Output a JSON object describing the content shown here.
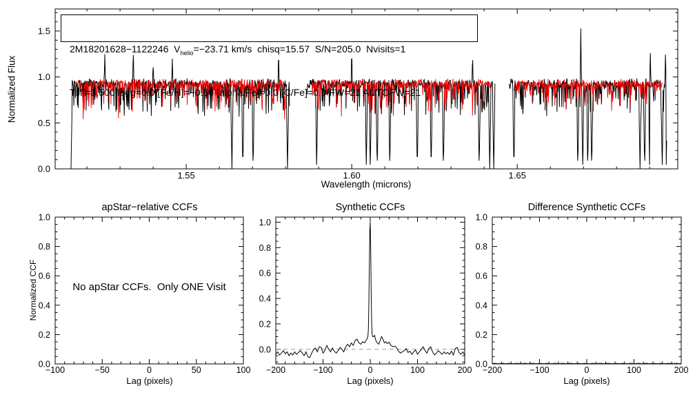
{
  "figure": {
    "background": "#ffffff",
    "axis_color": "#000000",
    "observed_color": "#000000",
    "synthetic_color": "#ee0000",
    "zero_line_color": "#999999"
  },
  "annotation_box": {
    "line1_pre": "2M18201628−1122246  V",
    "line1_sub": "helio",
    "line1_post": "=−23.71 km/s  chisq=15.57  S/N=205.0  Nvisits=1",
    "line2": "Teff=3,500 logg=0.0 [Fe/H]=−0.50 [alpha/Fe]=0.0 [C/Fe]=0.0 FW=21 AUTOFW=21"
  },
  "chart_data": [
    {
      "id": "spectrum",
      "type": "line",
      "xlabel": "Wavelength (microns)",
      "ylabel": "Normalized Flux",
      "xlim": [
        1.5104,
        1.6985
      ],
      "ylim": [
        0.0,
        1.74
      ],
      "xticks": [
        1.55,
        1.6,
        1.65
      ],
      "xtick_labels": [
        "1.55",
        "1.60",
        "1.65"
      ],
      "yticks": [
        0.0,
        0.5,
        1.0,
        1.5
      ],
      "ytick_labels": [
        "0.0",
        "0.5",
        "1.0",
        "1.5"
      ],
      "x_minor_step": 0.01,
      "y_minor_step": 0.1,
      "series": [
        {
          "name": "observed-spectrum",
          "color": "#000000"
        },
        {
          "name": "best-fit-synthetic-spectrum",
          "color": "#ee0000"
        }
      ],
      "detector_segments_microns": [
        [
          1.5152,
          1.5813
        ],
        [
          1.5865,
          1.6433
        ],
        [
          1.6475,
          1.6952
        ]
      ],
      "deep_absorption_lines_microns": [
        1.5152,
        1.5638,
        1.5671,
        1.5702,
        1.5806,
        1.5894,
        1.6044,
        1.6056,
        1.6077,
        1.6115,
        1.6198,
        1.624,
        1.6277,
        1.6385,
        1.6417,
        1.6429,
        1.649,
        1.6683,
        1.6698,
        1.6713,
        1.6725,
        1.6871,
        1.6885,
        1.69,
        1.6938,
        1.695
      ],
      "emission_spikes": [
        [
          1.5254,
          1.25
        ],
        [
          1.534,
          1.32
        ],
        [
          1.54,
          1.15
        ],
        [
          1.5458,
          1.2
        ],
        [
          1.5779,
          1.3
        ],
        [
          1.6,
          1.32
        ],
        [
          1.6365,
          1.25
        ],
        [
          1.6692,
          1.6
        ],
        [
          1.6902,
          1.3
        ],
        [
          1.6948,
          1.28
        ]
      ],
      "typical_flux_band": [
        0.75,
        1.0
      ],
      "noise_seed": 20240501
    },
    {
      "id": "apstar_ccf",
      "type": "line",
      "title": "apStar−relative CCFs",
      "xlabel": "Lag (pixels)",
      "ylabel": "Normalized CCF",
      "xlim": [
        -100,
        100
      ],
      "ylim": [
        0,
        1
      ],
      "xticks": [
        -100,
        -50,
        0,
        50,
        100
      ],
      "xtick_labels": [
        "−100",
        "−50",
        "0",
        "50",
        "100"
      ],
      "yticks": [
        0,
        0.2,
        0.4,
        0.6,
        0.8,
        1.0
      ],
      "ytick_labels": [
        "0.0",
        "0.2",
        "0.4",
        "0.6",
        "0.8",
        "1.0"
      ],
      "x_minor_step": 10,
      "y_minor_step": 0.05,
      "annotation": "No apStar CCFs.  Only ONE Visit",
      "points": []
    },
    {
      "id": "synthetic_ccf",
      "type": "line",
      "title": "Synthetic CCFs",
      "xlabel": "Lag (pixels)",
      "ylabel": "",
      "xlim": [
        -200,
        200
      ],
      "ylim": [
        -0.115,
        1.04
      ],
      "xticks": [
        -200,
        -100,
        0,
        100,
        200
      ],
      "xtick_labels": [
        "−200",
        "−100",
        "0",
        "100",
        "200"
      ],
      "yticks": [
        0,
        0.2,
        0.4,
        0.6,
        0.8,
        1.0
      ],
      "ytick_labels": [
        "0.0",
        "0.2",
        "0.4",
        "0.6",
        "0.8",
        "1.0"
      ],
      "x_minor_step": 20,
      "y_minor_step": 0.05,
      "zero_line": {
        "y": 0,
        "style": "dashed",
        "color": "#999999"
      },
      "peak": {
        "lag": 0,
        "height": 1.0
      },
      "points": [
        [
          -200,
          -0.04
        ],
        [
          -196,
          -0.02
        ],
        [
          -192,
          -0.045
        ],
        [
          -188,
          -0.03
        ],
        [
          -184,
          -0.01
        ],
        [
          -180,
          -0.035
        ],
        [
          -176,
          -0.02
        ],
        [
          -172,
          -0.05
        ],
        [
          -168,
          -0.03
        ],
        [
          -164,
          -0.045
        ],
        [
          -160,
          -0.02
        ],
        [
          -156,
          -0.04
        ],
        [
          -152,
          -0.025
        ],
        [
          -148,
          -0.01
        ],
        [
          -144,
          -0.03
        ],
        [
          -140,
          -0.05
        ],
        [
          -136,
          -0.02
        ],
        [
          -132,
          -0.06
        ],
        [
          -128,
          -0.065
        ],
        [
          -124,
          -0.03
        ],
        [
          -120,
          0.0
        ],
        [
          -116,
          0.01
        ],
        [
          -112,
          -0.02
        ],
        [
          -108,
          0.02
        ],
        [
          -104,
          0.015
        ],
        [
          -100,
          -0.03
        ],
        [
          -96,
          -0.01
        ],
        [
          -92,
          0.03
        ],
        [
          -88,
          0.0
        ],
        [
          -84,
          -0.02
        ],
        [
          -80,
          0.01
        ],
        [
          -76,
          -0.015
        ],
        [
          -72,
          -0.03
        ],
        [
          -68,
          -0.01
        ],
        [
          -64,
          0.015
        ],
        [
          -60,
          0.0
        ],
        [
          -56,
          -0.02
        ],
        [
          -52,
          0.02
        ],
        [
          -48,
          0.04
        ],
        [
          -44,
          0.02
        ],
        [
          -40,
          0.05
        ],
        [
          -36,
          0.03
        ],
        [
          -32,
          0.07
        ],
        [
          -28,
          0.08
        ],
        [
          -24,
          0.05
        ],
        [
          -20,
          0.04
        ],
        [
          -16,
          0.06
        ],
        [
          -12,
          0.05
        ],
        [
          -9,
          0.07
        ],
        [
          -7,
          0.08
        ],
        [
          -5,
          0.1
        ],
        [
          -4,
          0.16
        ],
        [
          -3,
          0.33
        ],
        [
          -2,
          0.62
        ],
        [
          -1,
          0.93
        ],
        [
          0,
          1.0
        ],
        [
          1,
          0.78
        ],
        [
          2,
          0.43
        ],
        [
          3,
          0.2
        ],
        [
          4,
          0.12
        ],
        [
          5,
          0.1
        ],
        [
          7,
          0.1
        ],
        [
          9,
          0.11
        ],
        [
          11,
          0.08
        ],
        [
          13,
          0.06
        ],
        [
          15,
          0.05
        ],
        [
          18,
          0.04
        ],
        [
          21,
          0.07
        ],
        [
          24,
          0.1
        ],
        [
          27,
          0.08
        ],
        [
          30,
          0.05
        ],
        [
          33,
          0.06
        ],
        [
          36,
          0.045
        ],
        [
          40,
          0.055
        ],
        [
          44,
          0.03
        ],
        [
          48,
          0.02
        ],
        [
          52,
          0.025
        ],
        [
          56,
          0.01
        ],
        [
          60,
          -0.015
        ],
        [
          64,
          -0.03
        ],
        [
          68,
          -0.02
        ],
        [
          72,
          -0.01
        ],
        [
          76,
          0.005
        ],
        [
          80,
          -0.025
        ],
        [
          84,
          -0.015
        ],
        [
          88,
          -0.04
        ],
        [
          92,
          -0.02
        ],
        [
          96,
          -0.005
        ],
        [
          100,
          -0.04
        ],
        [
          104,
          -0.02
        ],
        [
          108,
          0.0
        ],
        [
          112,
          0.02
        ],
        [
          116,
          -0.01
        ],
        [
          120,
          -0.03
        ],
        [
          124,
          0.005
        ],
        [
          128,
          0.02
        ],
        [
          132,
          -0.02
        ],
        [
          136,
          -0.045
        ],
        [
          140,
          -0.03
        ],
        [
          144,
          -0.01
        ],
        [
          148,
          -0.025
        ],
        [
          152,
          -0.04
        ],
        [
          156,
          -0.02
        ],
        [
          160,
          -0.035
        ],
        [
          164,
          -0.025
        ],
        [
          168,
          -0.04
        ],
        [
          172,
          -0.015
        ],
        [
          176,
          -0.045
        ],
        [
          180,
          0.005
        ],
        [
          184,
          0.015
        ],
        [
          188,
          -0.025
        ],
        [
          192,
          -0.04
        ],
        [
          196,
          -0.02
        ],
        [
          200,
          -0.045
        ]
      ]
    },
    {
      "id": "difference_ccf",
      "type": "line",
      "title": "Difference Synthetic CCFs",
      "xlabel": "Lag (pixels)",
      "ylabel": "",
      "xlim": [
        -200,
        200
      ],
      "ylim": [
        0,
        1
      ],
      "xticks": [
        -200,
        -100,
        0,
        100,
        200
      ],
      "xtick_labels": [
        "−200",
        "−100",
        "0",
        "100",
        "200"
      ],
      "yticks": [
        0,
        0.2,
        0.4,
        0.6,
        0.8,
        1.0
      ],
      "ytick_labels": [
        "0.0",
        "0.2",
        "0.4",
        "0.6",
        "0.8",
        "1.0"
      ],
      "x_minor_step": 20,
      "y_minor_step": 0.05,
      "zero_line": {
        "y": 0.006,
        "style": "dashed",
        "color": "#999999"
      },
      "points": [
        [
          -200,
          0.002
        ],
        [
          200,
          0.002
        ]
      ]
    }
  ]
}
